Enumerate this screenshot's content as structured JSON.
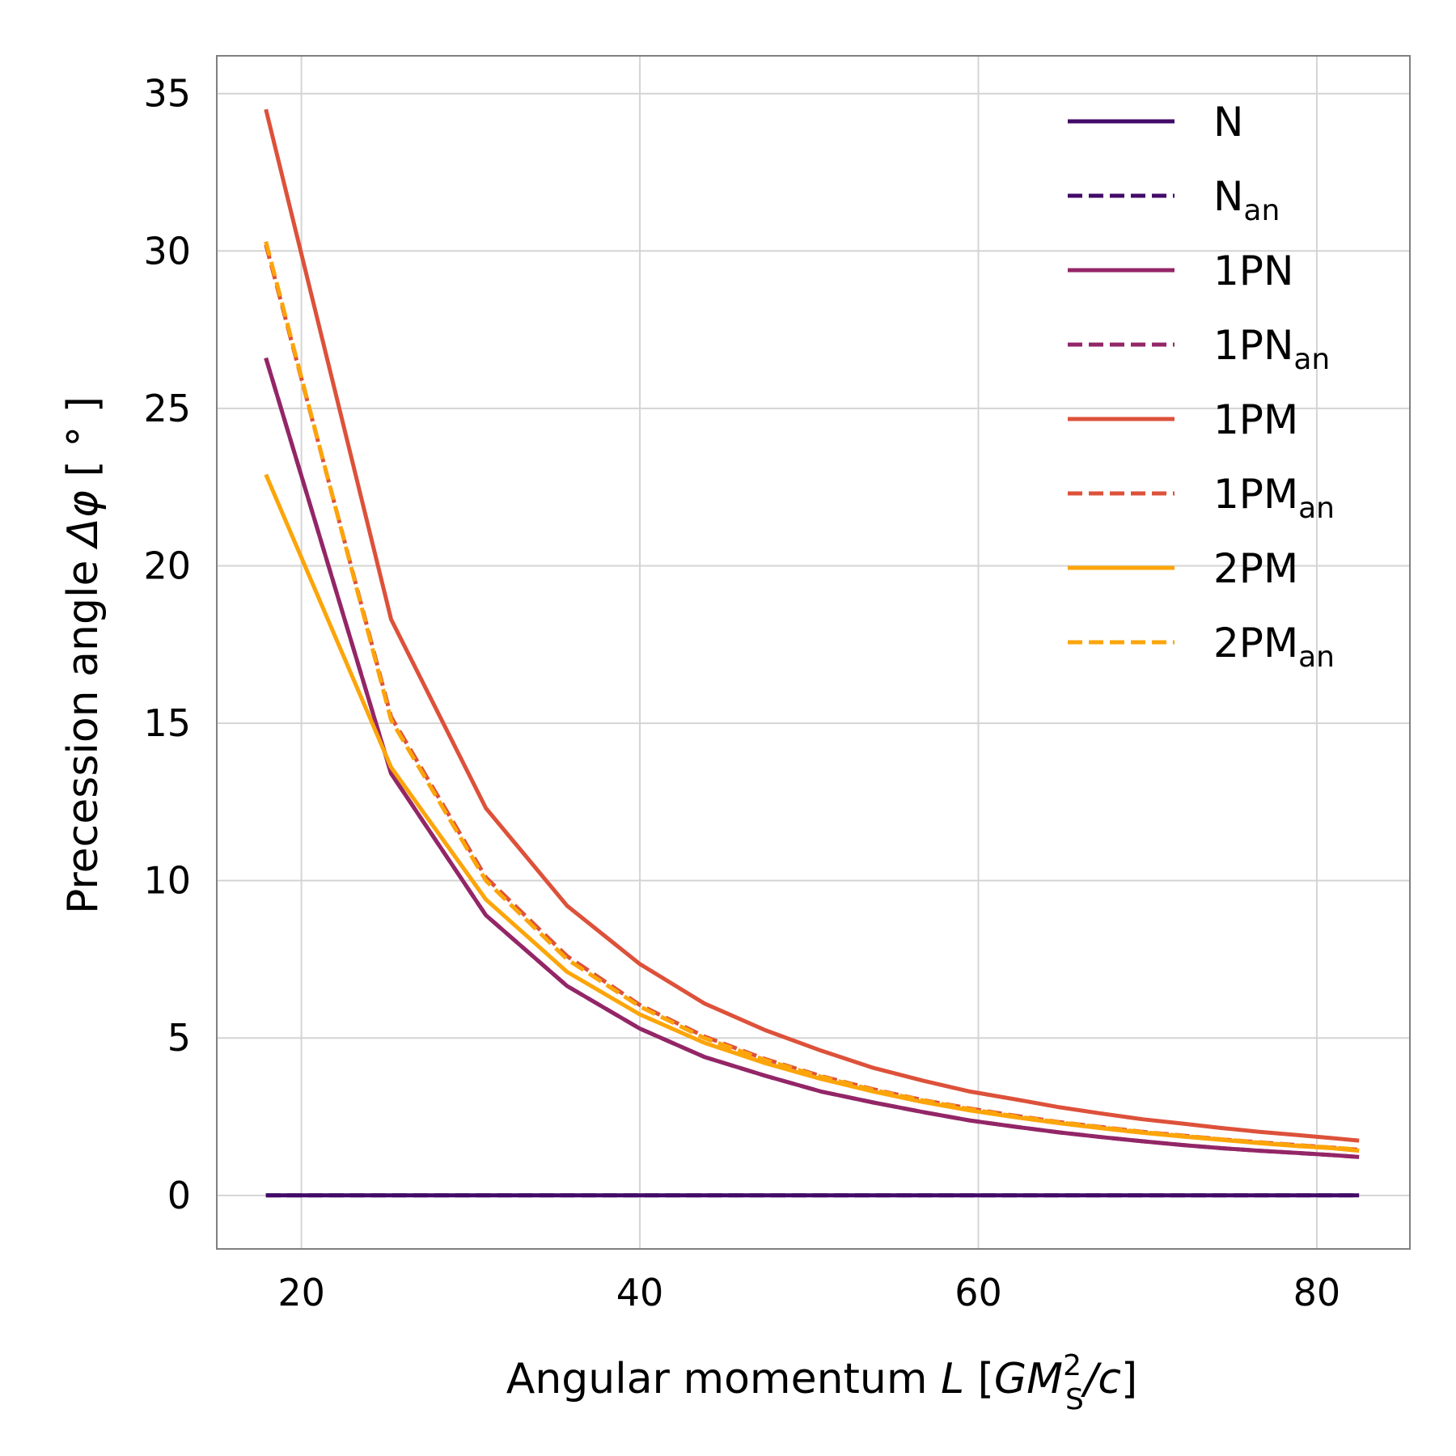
{
  "chart_data": {
    "type": "line",
    "xlabel": {
      "main": "Angular momentum ",
      "var": "L",
      "unit_open": " [",
      "unit_var": "GM",
      "unit_sup": "2",
      "unit_sub": "S",
      "unit_tail": "/c",
      "unit_close": "]"
    },
    "ylabel": {
      "main": "Precession angle ",
      "var": "Δφ",
      "unit": " [ ° ]"
    },
    "xlim": [
      15,
      85.5
    ],
    "ylim": [
      -1.7,
      36.2
    ],
    "xticks": [
      20,
      40,
      60,
      80
    ],
    "yticks": [
      0,
      5,
      10,
      15,
      20,
      25,
      30,
      35
    ],
    "grid": true,
    "legend_position": "top-right",
    "x": [
      17.9,
      25.3,
      30.9,
      35.7,
      40.0,
      43.8,
      47.4,
      50.7,
      53.8,
      56.7,
      59.5,
      62.2,
      64.8,
      67.3,
      69.7,
      72.1,
      74.4,
      76.6,
      78.8,
      80.9,
      82.5
    ],
    "series": [
      {
        "name": "N",
        "sub": "",
        "color": "#420a68",
        "dashed": false,
        "values": [
          0,
          0,
          0,
          0,
          0,
          0,
          0,
          0,
          0,
          0,
          0,
          0,
          0,
          0,
          0,
          0,
          0,
          0,
          0,
          0,
          0
        ]
      },
      {
        "name": "N",
        "sub": "an",
        "color": "#420a68",
        "dashed": true,
        "values": [
          0,
          0,
          0,
          0,
          0,
          0,
          0,
          0,
          0,
          0,
          0,
          0,
          0,
          0,
          0,
          0,
          0,
          0,
          0,
          0,
          0
        ]
      },
      {
        "name": "1PN",
        "sub": "",
        "color": "#932667",
        "dashed": false,
        "values": [
          26.6,
          13.4,
          8.9,
          6.65,
          5.3,
          4.4,
          3.8,
          3.3,
          2.95,
          2.65,
          2.38,
          2.18,
          2.0,
          1.85,
          1.72,
          1.6,
          1.5,
          1.42,
          1.35,
          1.28,
          1.22
        ]
      },
      {
        "name": "1PN",
        "sub": "an",
        "color": "#932667",
        "dashed": true,
        "values": [
          26.6,
          13.4,
          8.9,
          6.65,
          5.3,
          4.4,
          3.8,
          3.3,
          2.95,
          2.65,
          2.38,
          2.18,
          2.0,
          1.85,
          1.72,
          1.6,
          1.5,
          1.42,
          1.35,
          1.28,
          1.22
        ]
      },
      {
        "name": "1PM",
        "sub": "",
        "color": "#dd513a",
        "dashed": false,
        "values": [
          34.5,
          18.3,
          12.3,
          9.2,
          7.35,
          6.1,
          5.25,
          4.6,
          4.05,
          3.65,
          3.3,
          3.05,
          2.8,
          2.6,
          2.42,
          2.28,
          2.14,
          2.02,
          1.92,
          1.82,
          1.74
        ]
      },
      {
        "name": "1PM",
        "sub": "an",
        "color": "#dd513a",
        "dashed": true,
        "values": [
          30.2,
          15.2,
          10.1,
          7.6,
          6.05,
          5.05,
          4.33,
          3.79,
          3.37,
          3.03,
          2.76,
          2.53,
          2.33,
          2.17,
          2.02,
          1.9,
          1.78,
          1.69,
          1.6,
          1.52,
          1.45
        ]
      },
      {
        "name": "2PM",
        "sub": "",
        "color": "#fca50a",
        "dashed": false,
        "values": [
          22.9,
          13.6,
          9.4,
          7.1,
          5.75,
          4.85,
          4.2,
          3.7,
          3.3,
          2.97,
          2.7,
          2.48,
          2.29,
          2.13,
          1.99,
          1.87,
          1.76,
          1.66,
          1.57,
          1.5,
          1.42
        ]
      },
      {
        "name": "2PM",
        "sub": "an",
        "color": "#fca50a",
        "dashed": true,
        "values": [
          30.3,
          15.1,
          10.0,
          7.5,
          6.0,
          5.0,
          4.3,
          3.77,
          3.35,
          3.02,
          2.74,
          2.51,
          2.32,
          2.16,
          2.01,
          1.89,
          1.78,
          1.68,
          1.59,
          1.52,
          1.45
        ]
      }
    ]
  }
}
